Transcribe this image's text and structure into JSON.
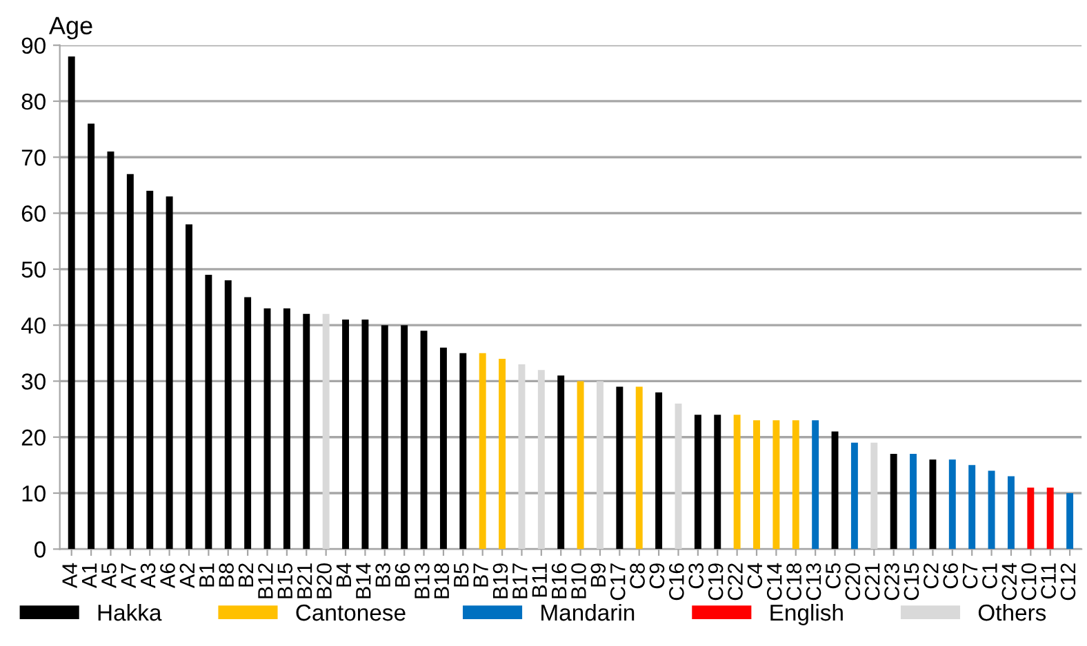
{
  "chart_data": {
    "type": "bar",
    "ylabel": "Age",
    "categories": [
      "A4",
      "A1",
      "A5",
      "A7",
      "A3",
      "A6",
      "A2",
      "B1",
      "B8",
      "B2",
      "B12",
      "B15",
      "B21",
      "B20",
      "B4",
      "B14",
      "B3",
      "B6",
      "B13",
      "B18",
      "B5",
      "B7",
      "B19",
      "B17",
      "B11",
      "B16",
      "B10",
      "B9",
      "C17",
      "C8",
      "C9",
      "C16",
      "C3",
      "C19",
      "C22",
      "C4",
      "C14",
      "C18",
      "C13",
      "C5",
      "C20",
      "C21",
      "C23",
      "C15",
      "C2",
      "C6",
      "C7",
      "C1",
      "C24",
      "C10",
      "C11",
      "C12"
    ],
    "series": [
      {
        "name": "Hakka",
        "color": "#000000",
        "values": [
          88,
          76,
          71,
          67,
          64,
          63,
          58,
          49,
          48,
          45,
          43,
          43,
          42,
          null,
          41,
          41,
          40,
          40,
          39,
          36,
          35,
          null,
          null,
          null,
          null,
          31,
          null,
          null,
          29,
          null,
          28,
          null,
          24,
          24,
          null,
          null,
          null,
          null,
          null,
          21,
          null,
          null,
          17,
          null,
          16,
          null,
          null,
          null,
          null,
          null,
          null,
          null
        ]
      },
      {
        "name": "Cantonese",
        "color": "#ffc000",
        "values": [
          null,
          null,
          null,
          null,
          null,
          null,
          null,
          null,
          null,
          null,
          null,
          null,
          null,
          null,
          null,
          null,
          null,
          null,
          null,
          null,
          null,
          35,
          34,
          null,
          null,
          null,
          30,
          null,
          null,
          29,
          null,
          null,
          null,
          null,
          24,
          23,
          23,
          23,
          null,
          null,
          null,
          null,
          null,
          null,
          null,
          null,
          null,
          null,
          null,
          null,
          null,
          null
        ]
      },
      {
        "name": "Mandarin",
        "color": "#0070c0",
        "values": [
          null,
          null,
          null,
          null,
          null,
          null,
          null,
          null,
          null,
          null,
          null,
          null,
          null,
          null,
          null,
          null,
          null,
          null,
          null,
          null,
          null,
          null,
          null,
          null,
          null,
          null,
          null,
          null,
          null,
          null,
          null,
          null,
          null,
          null,
          null,
          null,
          null,
          null,
          23,
          null,
          19,
          null,
          null,
          17,
          null,
          16,
          15,
          14,
          13,
          null,
          null,
          10
        ]
      },
      {
        "name": "English",
        "color": "#ff0000",
        "values": [
          null,
          null,
          null,
          null,
          null,
          null,
          null,
          null,
          null,
          null,
          null,
          null,
          null,
          null,
          null,
          null,
          null,
          null,
          null,
          null,
          null,
          null,
          null,
          null,
          null,
          null,
          null,
          null,
          null,
          null,
          null,
          null,
          null,
          null,
          null,
          null,
          null,
          null,
          null,
          null,
          null,
          null,
          null,
          null,
          null,
          null,
          null,
          null,
          null,
          11,
          11,
          null
        ]
      },
      {
        "name": "Others",
        "color": "#d9d9d9",
        "values": [
          null,
          null,
          null,
          null,
          null,
          null,
          null,
          null,
          null,
          null,
          null,
          null,
          null,
          42,
          null,
          null,
          null,
          null,
          null,
          null,
          null,
          null,
          null,
          33,
          32,
          null,
          null,
          30,
          null,
          null,
          null,
          26,
          null,
          null,
          null,
          null,
          null,
          null,
          null,
          null,
          null,
          19,
          null,
          null,
          null,
          null,
          null,
          null,
          null,
          null,
          null,
          null
        ]
      }
    ],
    "ylim": [
      0,
      90
    ],
    "yticks": [
      0,
      10,
      20,
      30,
      40,
      50,
      60,
      70,
      80,
      90
    ],
    "grid": "y",
    "legend": "bottom"
  }
}
